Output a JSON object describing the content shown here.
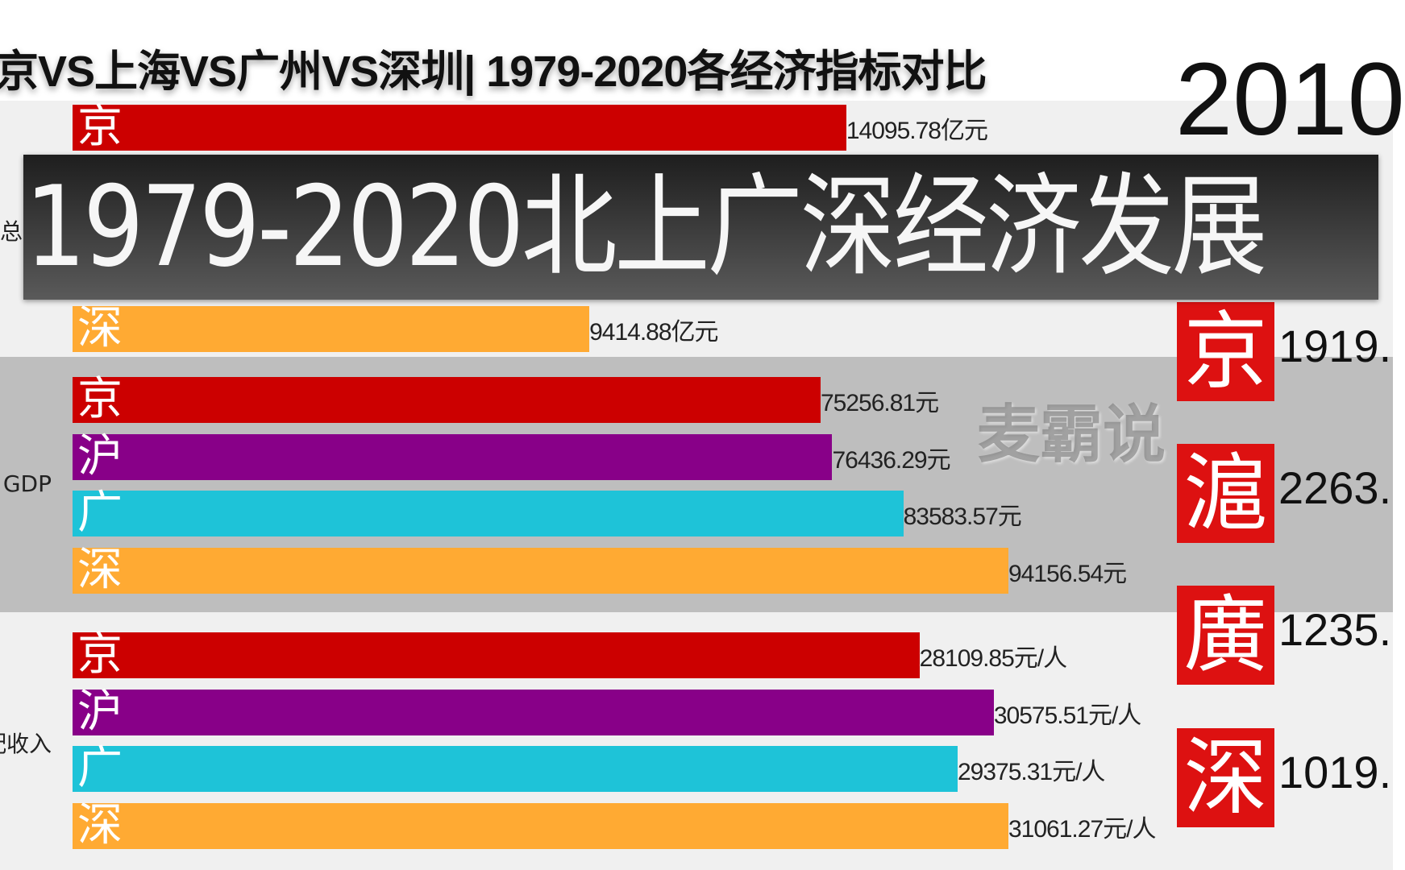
{
  "title": "京VS上海VS广州VS深圳| 1979-2020各经济指标对比",
  "year": "2010",
  "overlay_caption": "1979-2020北上广深经济发展",
  "watermark": "麦霸说",
  "colors": {
    "京": "#cc0000",
    "沪": "#880088",
    "广": "#1ec3d8",
    "深": "#ffaa33"
  },
  "chart_data": {
    "type": "bar",
    "orientation": "horizontal",
    "panels": [
      {
        "label": "总",
        "bg": "#f0f0f0",
        "xlim": [
          0,
          17050
        ],
        "bars": [
          {
            "city": "京",
            "value": 14095.78,
            "label": "14095.78亿元",
            "slot": 0
          },
          {
            "city": "深",
            "value": 9414.88,
            "label": "9414.88亿元",
            "slot": 3
          }
        ]
      },
      {
        "label": "GDP",
        "bg": "#bebebe",
        "xlim": [
          0,
          94156.54
        ],
        "bars": [
          {
            "city": "京",
            "value": 75256.81,
            "label": "75256.81元",
            "slot": 0
          },
          {
            "city": "沪",
            "value": 76436.29,
            "label": "76436.29元",
            "slot": 1
          },
          {
            "city": "广",
            "value": 83583.57,
            "label": "83583.57元",
            "slot": 2
          },
          {
            "city": "深",
            "value": 94156.54,
            "label": "94156.54元",
            "slot": 3
          }
        ]
      },
      {
        "label": "配收入",
        "bg": "#f0f0f0",
        "xlim": [
          0,
          31061.27
        ],
        "bars": [
          {
            "city": "京",
            "value": 28109.85,
            "label": "28109.85元/人",
            "slot": 0
          },
          {
            "city": "沪",
            "value": 30575.51,
            "label": "30575.51元/人",
            "slot": 1
          },
          {
            "city": "广",
            "value": 29375.31,
            "label": "29375.31元/人",
            "slot": 2
          },
          {
            "city": "深",
            "value": 31061.27,
            "label": "31061.27元/人",
            "slot": 3
          }
        ]
      }
    ]
  },
  "seals": [
    {
      "glyph": "京",
      "value": "1919."
    },
    {
      "glyph": "滬",
      "value": "2263."
    },
    {
      "glyph": "廣",
      "value": "1235."
    },
    {
      "glyph": "深",
      "value": "1019."
    }
  ]
}
